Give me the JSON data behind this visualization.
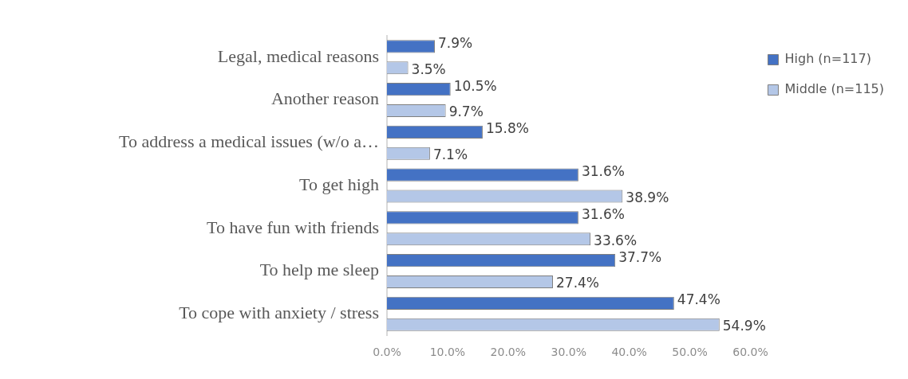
{
  "chart_data": {
    "type": "bar",
    "orientation": "horizontal",
    "categories": [
      "Legal, medical reasons",
      "Another reason",
      "To address a medical issues (w/o a…",
      "To get high",
      "To have fun with friends",
      "To help me sleep",
      "To cope with anxiety / stress"
    ],
    "series": [
      {
        "name": "High (n=117)",
        "color": "#4472c4",
        "values": [
          7.9,
          10.5,
          15.8,
          31.6,
          31.6,
          37.7,
          47.4
        ],
        "value_labels": [
          "7.9%",
          "10.5%",
          "15.8%",
          "31.6%",
          "31.6%",
          "37.7%",
          "47.4%"
        ]
      },
      {
        "name": "Middle (n=115)",
        "color": "#b4c7e7",
        "values": [
          3.5,
          9.7,
          7.1,
          38.9,
          33.6,
          27.4,
          54.9
        ],
        "value_labels": [
          "3.5%",
          "9.7%",
          "7.1%",
          "38.9%",
          "33.6%",
          "27.4%",
          "54.9%"
        ]
      }
    ],
    "xlim": [
      0,
      60
    ],
    "xticks": [
      {
        "value": 0,
        "label": "0.0%"
      },
      {
        "value": 10,
        "label": "10.0%"
      },
      {
        "value": 20,
        "label": "20.0%"
      },
      {
        "value": 30,
        "label": "30.0%"
      },
      {
        "value": 40,
        "label": "40.0%"
      },
      {
        "value": 50,
        "label": "50.0%"
      },
      {
        "value": 60,
        "label": "60.0%"
      }
    ],
    "grid": false,
    "legend": "right"
  }
}
